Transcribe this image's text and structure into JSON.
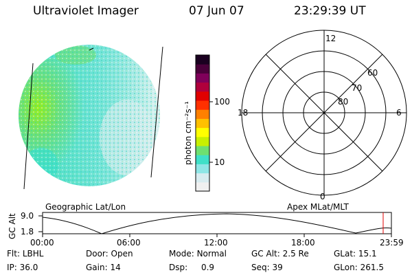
{
  "header": {
    "title": "Ultraviolet Imager",
    "date": "07 Jun 07",
    "time": "23:29:39 UT"
  },
  "colorbar": {
    "label": "photon cm⁻²s⁻¹",
    "ticks": [
      "100",
      "10"
    ],
    "colors": [
      "#f0f0f0",
      "#d8ecf0",
      "#8fe6e6",
      "#3fe0c8",
      "#6ee070",
      "#c8f000",
      "#ffff00",
      "#ffc000",
      "#ff8000",
      "#ff3000",
      "#e00000",
      "#b0003c",
      "#80005a",
      "#4a003a",
      "#1a0020"
    ]
  },
  "polar": {
    "mlt_top": "12",
    "mlt_left": "18",
    "mlt_right": "6",
    "mlt_bottom": "0",
    "lat_60": "60",
    "lat_70": "70",
    "lat_80": "80"
  },
  "labels": {
    "left": "Geographic Lat/Lon",
    "right": "Apex MLat/MLT"
  },
  "altplot": {
    "ylabel": "GC Alt",
    "ytick_top": "9.0",
    "ytick_bottom": "1.8",
    "xticks": [
      "00:00",
      "06:00",
      "12:00",
      "18:00",
      "23:59"
    ]
  },
  "info": {
    "filter_label": "Flt:",
    "filter_value": "LBHL",
    "ip_label": "IP:",
    "ip_value": "36.0",
    "door_label": "Door:",
    "door_value": "Open",
    "gain_label": "Gain:",
    "gain_value": "14",
    "mode_label": "Mode:",
    "mode_value": "Normal",
    "dsp_label": "Dsp:",
    "dsp_value": "0.9",
    "gcalt_label": "GC Alt:",
    "gcalt_value": "2.5 Re",
    "seq_label": "Seq:",
    "seq_value": "39",
    "glat_label": "GLat:",
    "glat_value": "15.1",
    "glon_label": "GLon:",
    "glon_value": "261.5"
  }
}
